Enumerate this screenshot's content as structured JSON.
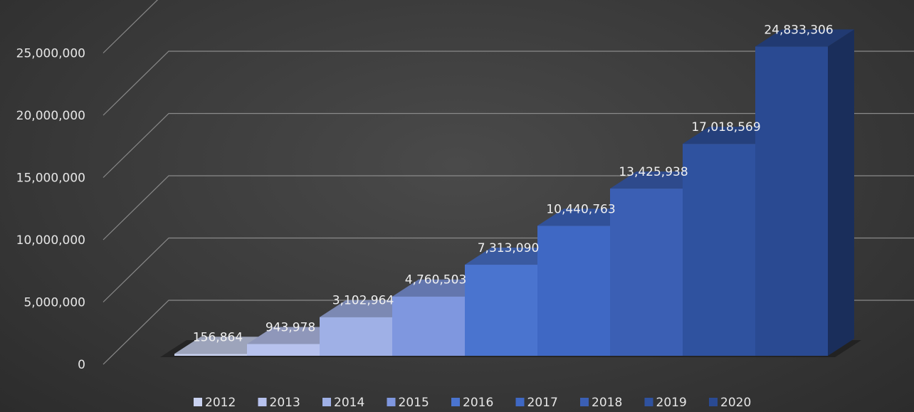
{
  "chart_data": {
    "type": "bar",
    "title": "",
    "xlabel": "",
    "ylabel": "",
    "categories": [
      "2012",
      "2013",
      "2014",
      "2015",
      "2016",
      "2017",
      "2018",
      "2019",
      "2020"
    ],
    "values": [
      156864,
      943978,
      3102964,
      4760503,
      7313090,
      10440763,
      13425938,
      17018569,
      24833306
    ],
    "data_labels": [
      "156,864",
      "943,978",
      "3,102,964",
      "4,760,503",
      "7,313,090",
      "10,440,763",
      "13,425,938",
      "17,018,569",
      "24,833,306"
    ],
    "ylim": [
      0,
      25000000
    ],
    "yticks": [
      0,
      5000000,
      10000000,
      15000000,
      20000000,
      25000000
    ],
    "ytick_labels": [
      "0",
      "5,000,000",
      "10,000,000",
      "15,000,000",
      "20,000,000",
      "25,000,000"
    ],
    "style": "3d-column",
    "grid": true,
    "legend_position": "bottom",
    "colors": [
      "#c9d2f0",
      "#b7c2ee",
      "#9fb0e6",
      "#7f97df",
      "#4a74cf",
      "#3f68c4",
      "#3b5fb4",
      "#2f529f",
      "#2a4a92"
    ]
  }
}
